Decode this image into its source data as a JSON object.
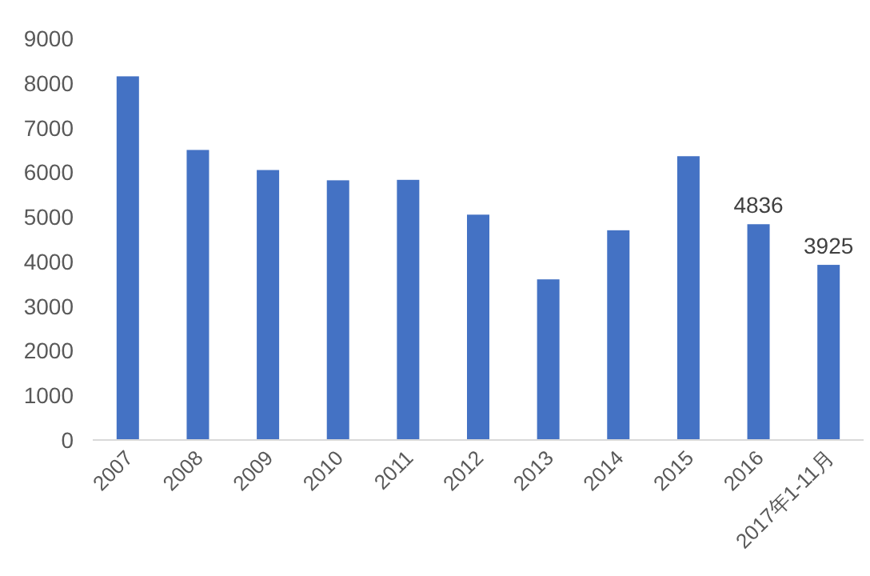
{
  "chart_data": {
    "type": "bar",
    "categories": [
      "2007",
      "2008",
      "2009",
      "2010",
      "2011",
      "2012",
      "2013",
      "2014",
      "2015",
      "2016",
      "2017年1-11月"
    ],
    "values": [
      8150,
      6500,
      6050,
      5820,
      5830,
      5050,
      3600,
      4700,
      6360,
      4836,
      3925
    ],
    "value_labels": [
      null,
      null,
      null,
      null,
      null,
      null,
      null,
      null,
      null,
      "4836",
      "3925"
    ],
    "color": "#4472c4",
    "ylim": [
      0,
      9000
    ],
    "yticks": [
      0,
      1000,
      2000,
      3000,
      4000,
      5000,
      6000,
      7000,
      8000,
      9000
    ],
    "grid": false
  }
}
